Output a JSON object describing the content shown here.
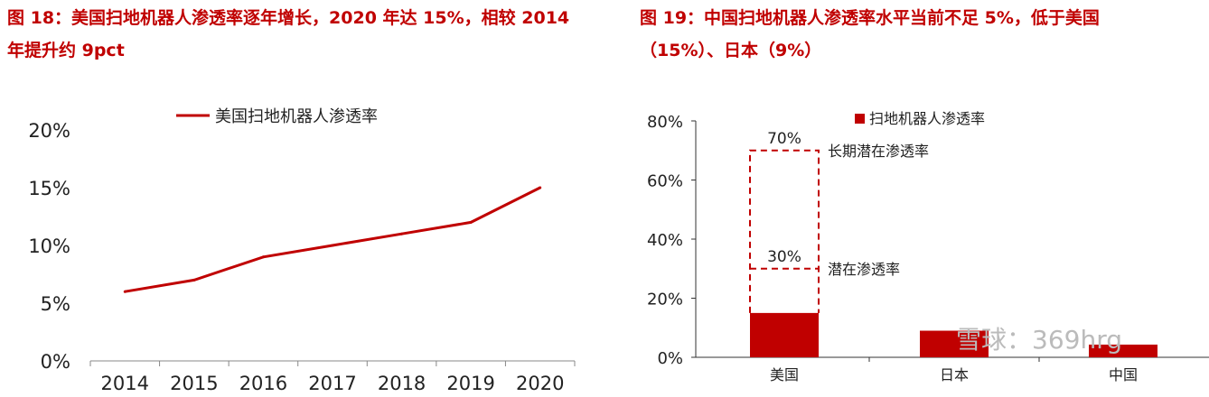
{
  "chart_data": [
    {
      "type": "line",
      "title": "图 18：美国扫地机器人渗透率逐年增长，2020 年达 15%，相较 2014 年提升约 9pct",
      "title_lines": [
        "图 18：美国扫地机器人渗透率逐年增长，2020 年达 15%，",
        "相较 2014 年提升约 9pct"
      ],
      "categories": [
        "2014",
        "2015",
        "2016",
        "2017",
        "2018",
        "2019",
        "2020"
      ],
      "series": [
        {
          "name": "美国扫地机器人渗透率",
          "values": [
            6,
            7,
            9,
            10,
            11,
            12,
            15
          ],
          "color": "#c00000"
        }
      ],
      "yticks": [
        "0%",
        "5%",
        "10%",
        "15%",
        "20%"
      ],
      "ylim": [
        0,
        20
      ],
      "legend": "top"
    },
    {
      "type": "bar",
      "title": "图 19：中国扫地机器人渗透率水平当前不足 5%，低于美国（15%）、日本（9%）",
      "title_lines": [
        "图 19：中国扫地机器人渗透率水平当前不足 5%，低于美国",
        "（15%）、日本（9%）"
      ],
      "categories": [
        "美国",
        "日本",
        "中国"
      ],
      "series": [
        {
          "name": "扫地机器人渗透率",
          "values": [
            15,
            9,
            4.3
          ],
          "color": "#c00000"
        }
      ],
      "yticks": [
        "0%",
        "20%",
        "40%",
        "60%",
        "80%"
      ],
      "ylim": [
        0,
        80
      ],
      "legend": "top-right",
      "annotations": [
        {
          "value": 70,
          "label": "70%",
          "note": "长期潜在渗透率"
        },
        {
          "value": 30,
          "label": "30%",
          "note": "潜在渗透率"
        }
      ],
      "watermark": "雪球：369hrg"
    }
  ]
}
